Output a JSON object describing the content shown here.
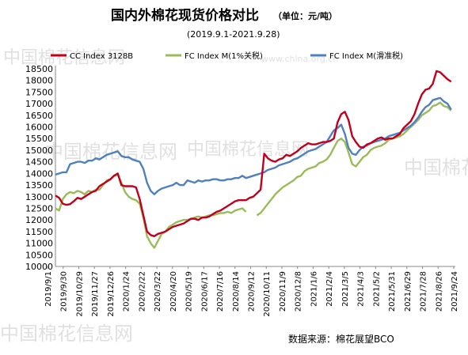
{
  "title": "国内外棉花现货价格对比",
  "unit_label": "（单位：元/吨）",
  "subtitle": "(2019.9.1-2021.9.28)",
  "source": "数据来源：棉花展望BCO",
  "watermark": "中国棉花信息网",
  "watermark_url": "www.china.org.cn",
  "chart_data": {
    "type": "line",
    "title": "国内外棉花现货价格对比",
    "subtitle": "(2019.9.1-2021.9.28)",
    "unit": "元/吨",
    "xlabel": "",
    "ylabel": "",
    "ylim": [
      10000,
      18500
    ],
    "yticks": [
      10000,
      10500,
      11000,
      11500,
      12000,
      12500,
      13000,
      13500,
      14000,
      14500,
      15000,
      15500,
      16000,
      16500,
      17000,
      17500,
      18000,
      18500
    ],
    "x_start": "2019-09-01",
    "x_end": "2021-09-28",
    "xtick_labels": [
      "2019/9/1",
      "2019/9/30",
      "2019/10/29",
      "2019/11/27",
      "2019/12/26",
      "2020/1/24",
      "2020/2/22",
      "2020/3/22",
      "2020/4/20",
      "2020/5/19",
      "2020/6/17",
      "2020/7/16",
      "2020/8/14",
      "2020/9/12",
      "2020/10/11",
      "2020/11/9",
      "2020/12/8",
      "2021/1/6",
      "2021/2/4",
      "2021/3/5",
      "2021/4/3",
      "2021/5/2",
      "2021/5/31",
      "2021/6/29",
      "2021/7/28",
      "2021/8/26",
      "2021/9/24"
    ],
    "grid": false,
    "legend_position": "top",
    "series": [
      {
        "name": "CC Index 3128B",
        "color": "#c0001d",
        "x": [
          "2019-09-01",
          "2019-09-08",
          "2019-09-15",
          "2019-09-22",
          "2019-09-29",
          "2019-10-06",
          "2019-10-13",
          "2019-10-20",
          "2019-10-27",
          "2019-11-03",
          "2019-11-10",
          "2019-11-17",
          "2019-11-24",
          "2019-12-01",
          "2019-12-08",
          "2019-12-15",
          "2019-12-22",
          "2019-12-29",
          "2020-01-05",
          "2020-01-12",
          "2020-01-19",
          "2020-01-26",
          "2020-02-02",
          "2020-02-09",
          "2020-02-16",
          "2020-02-23",
          "2020-03-01",
          "2020-03-08",
          "2020-03-15",
          "2020-03-22",
          "2020-03-29",
          "2020-04-05",
          "2020-04-12",
          "2020-04-19",
          "2020-04-26",
          "2020-05-03",
          "2020-05-10",
          "2020-05-17",
          "2020-05-24",
          "2020-05-31",
          "2020-06-07",
          "2020-06-14",
          "2020-06-21",
          "2020-06-28",
          "2020-07-05",
          "2020-07-12",
          "2020-07-19",
          "2020-07-26",
          "2020-08-02",
          "2020-08-09",
          "2020-08-16",
          "2020-08-23",
          "2020-08-30",
          "2020-09-06",
          "2020-09-13",
          "2020-09-20",
          "2020-09-27",
          "2020-10-04",
          "2020-10-11",
          "2020-10-18",
          "2020-10-25",
          "2020-11-01",
          "2020-11-08",
          "2020-11-15",
          "2020-11-22",
          "2020-11-29",
          "2020-12-06",
          "2020-12-13",
          "2020-12-20",
          "2020-12-27",
          "2021-01-03",
          "2021-01-10",
          "2021-01-17",
          "2021-01-24",
          "2021-01-31",
          "2021-02-07",
          "2021-02-14",
          "2021-02-21",
          "2021-02-28",
          "2021-03-07",
          "2021-03-14",
          "2021-03-21",
          "2021-03-28",
          "2021-04-04",
          "2021-04-11",
          "2021-04-18",
          "2021-04-25",
          "2021-05-02",
          "2021-05-09",
          "2021-05-16",
          "2021-05-23",
          "2021-05-30",
          "2021-06-06",
          "2021-06-13",
          "2021-06-20",
          "2021-06-27",
          "2021-07-04",
          "2021-07-11",
          "2021-07-18",
          "2021-07-25",
          "2021-08-01",
          "2021-08-08",
          "2021-08-15",
          "2021-08-22",
          "2021-08-29",
          "2021-09-05",
          "2021-09-12",
          "2021-09-19",
          "2021-09-26"
        ],
        "values": [
          13050,
          12950,
          12700,
          12650,
          12680,
          12800,
          12950,
          12900,
          13000,
          13100,
          13200,
          13250,
          13450,
          13550,
          13650,
          13750,
          13900,
          14000,
          13500,
          13450,
          13450,
          13450,
          13400,
          12900,
          12200,
          11500,
          11350,
          11300,
          11400,
          11450,
          11500,
          11600,
          11700,
          11750,
          11800,
          11850,
          11950,
          12050,
          12050,
          12000,
          12100,
          12100,
          12150,
          12250,
          12350,
          12400,
          12500,
          12600,
          12700,
          12800,
          12850,
          12850,
          12850,
          12950,
          13000,
          13150,
          13300,
          14850,
          14650,
          14550,
          14500,
          14600,
          14650,
          14800,
          14750,
          14850,
          14950,
          15100,
          15200,
          15300,
          15250,
          15250,
          15300,
          15350,
          15350,
          15400,
          15500,
          16200,
          16550,
          16650,
          16300,
          15600,
          15350,
          15150,
          15100,
          15250,
          15300,
          15400,
          15500,
          15550,
          15450,
          15500,
          15500,
          15600,
          15700,
          15950,
          16100,
          16250,
          16550,
          17000,
          17400,
          17600,
          17650,
          17850,
          18400,
          18350,
          18200,
          18050,
          17950
        ]
      },
      {
        "name": "FC Index M(1%关税)",
        "color": "#9bbb59",
        "x": [
          "2019-09-01",
          "2019-09-08",
          "2019-09-15",
          "2019-09-22",
          "2019-09-29",
          "2019-10-06",
          "2019-10-13",
          "2019-10-20",
          "2019-10-27",
          "2019-11-03",
          "2019-11-10",
          "2019-11-17",
          "2019-11-24",
          "2019-12-01",
          "2019-12-08",
          "2019-12-15",
          "2019-12-22",
          "2019-12-29",
          "2020-01-05",
          "2020-01-12",
          "2020-01-19",
          "2020-01-26",
          "2020-02-02",
          "2020-02-09",
          "2020-02-16",
          "2020-02-23",
          "2020-03-01",
          "2020-03-08",
          "2020-03-15",
          "2020-03-22",
          "2020-03-29",
          "2020-04-05",
          "2020-04-12",
          "2020-04-19",
          "2020-04-26",
          "2020-05-03",
          "2020-05-10",
          "2020-05-17",
          "2020-05-24",
          "2020-05-31",
          "2020-06-07",
          "2020-06-14",
          "2020-06-21",
          "2020-06-28",
          "2020-07-05",
          "2020-07-12",
          "2020-07-19",
          "2020-07-26",
          "2020-08-02",
          "2020-08-09",
          "2020-08-16",
          "2020-08-23",
          "2020-08-30",
          "2020-09-06",
          "2020-09-13",
          "2020-09-20",
          "2020-09-27",
          "2020-10-04",
          "2020-10-11",
          "2020-10-18",
          "2020-10-25",
          "2020-11-01",
          "2020-11-08",
          "2020-11-15",
          "2020-11-22",
          "2020-11-29",
          "2020-12-06",
          "2020-12-13",
          "2020-12-20",
          "2020-12-27",
          "2021-01-03",
          "2021-01-10",
          "2021-01-17",
          "2021-01-24",
          "2021-01-31",
          "2021-02-07",
          "2021-02-14",
          "2021-02-21",
          "2021-02-28",
          "2021-03-07",
          "2021-03-14",
          "2021-03-21",
          "2021-03-28",
          "2021-04-04",
          "2021-04-11",
          "2021-04-18",
          "2021-04-25",
          "2021-05-02",
          "2021-05-09",
          "2021-05-16",
          "2021-05-23",
          "2021-05-30",
          "2021-06-06",
          "2021-06-13",
          "2021-06-20",
          "2021-06-27",
          "2021-07-04",
          "2021-07-11",
          "2021-07-18",
          "2021-07-25",
          "2021-08-01",
          "2021-08-08",
          "2021-08-15",
          "2021-08-22",
          "2021-08-29",
          "2021-09-05",
          "2021-09-12",
          "2021-09-19",
          "2021-09-26"
        ],
        "values": [
          12500,
          12400,
          12900,
          13100,
          13200,
          13150,
          13250,
          13200,
          13100,
          13250,
          13200,
          13300,
          13300,
          13500,
          13700,
          13750,
          13900,
          13950,
          13600,
          13200,
          13000,
          12900,
          12850,
          12700,
          12100,
          11300,
          11000,
          10800,
          11100,
          11400,
          11500,
          11700,
          11800,
          11900,
          11950,
          12000,
          12000,
          12050,
          12100,
          12150,
          12100,
          12150,
          12200,
          12200,
          12250,
          12300,
          12300,
          12350,
          12300,
          12400,
          12450,
          12500,
          12350,
          null,
          null,
          12200,
          12300,
          12500,
          12700,
          12900,
          13100,
          13250,
          13400,
          13500,
          13600,
          13700,
          13850,
          13900,
          14100,
          14200,
          14250,
          14300,
          14450,
          14500,
          14600,
          14800,
          15100,
          15400,
          15500,
          15350,
          14900,
          14400,
          14300,
          14500,
          14700,
          14800,
          15000,
          15100,
          15150,
          15200,
          15300,
          15450,
          15500,
          15550,
          15600,
          15700,
          15850,
          16000,
          16150,
          16300,
          16500,
          16600,
          16700,
          16900,
          16950,
          17050,
          16900,
          16850,
          16700
        ]
      },
      {
        "name": "FC Index M(滑准税)",
        "color": "#4f81bd",
        "x": [
          "2019-09-01",
          "2019-09-08",
          "2019-09-15",
          "2019-09-22",
          "2019-09-29",
          "2019-10-06",
          "2019-10-13",
          "2019-10-20",
          "2019-10-27",
          "2019-11-03",
          "2019-11-10",
          "2019-11-17",
          "2019-11-24",
          "2019-12-01",
          "2019-12-08",
          "2019-12-15",
          "2019-12-22",
          "2019-12-29",
          "2020-01-05",
          "2020-01-12",
          "2020-01-19",
          "2020-01-26",
          "2020-02-02",
          "2020-02-09",
          "2020-02-16",
          "2020-02-23",
          "2020-03-01",
          "2020-03-08",
          "2020-03-15",
          "2020-03-22",
          "2020-03-29",
          "2020-04-05",
          "2020-04-12",
          "2020-04-19",
          "2020-04-26",
          "2020-05-03",
          "2020-05-10",
          "2020-05-17",
          "2020-05-24",
          "2020-05-31",
          "2020-06-07",
          "2020-06-14",
          "2020-06-21",
          "2020-06-28",
          "2020-07-05",
          "2020-07-12",
          "2020-07-19",
          "2020-07-26",
          "2020-08-02",
          "2020-08-09",
          "2020-08-16",
          "2020-08-23",
          "2020-08-30",
          "2020-09-06",
          "2020-09-13",
          "2020-09-20",
          "2020-09-27",
          "2020-10-04",
          "2020-10-11",
          "2020-10-18",
          "2020-10-25",
          "2020-11-01",
          "2020-11-08",
          "2020-11-15",
          "2020-11-22",
          "2020-11-29",
          "2020-12-06",
          "2020-12-13",
          "2020-12-20",
          "2020-12-27",
          "2021-01-03",
          "2021-01-10",
          "2021-01-17",
          "2021-01-24",
          "2021-01-31",
          "2021-02-07",
          "2021-02-14",
          "2021-02-21",
          "2021-02-28",
          "2021-03-07",
          "2021-03-14",
          "2021-03-21",
          "2021-03-28",
          "2021-04-04",
          "2021-04-11",
          "2021-04-18",
          "2021-04-25",
          "2021-05-02",
          "2021-05-09",
          "2021-05-16",
          "2021-05-23",
          "2021-05-30",
          "2021-06-06",
          "2021-06-13",
          "2021-06-20",
          "2021-06-27",
          "2021-07-04",
          "2021-07-11",
          "2021-07-18",
          "2021-07-25",
          "2021-08-01",
          "2021-08-08",
          "2021-08-15",
          "2021-08-22",
          "2021-08-29",
          "2021-09-05",
          "2021-09-12",
          "2021-09-19",
          "2021-09-26"
        ],
        "values": [
          13950,
          14000,
          14050,
          14050,
          14400,
          14450,
          14500,
          14500,
          14450,
          14550,
          14550,
          14650,
          14600,
          14700,
          14800,
          14850,
          14900,
          14950,
          14750,
          14700,
          14700,
          14600,
          14550,
          14500,
          14200,
          13600,
          13250,
          13100,
          13250,
          13350,
          13400,
          13450,
          13500,
          13600,
          13500,
          13500,
          13700,
          13650,
          13600,
          13700,
          13650,
          13700,
          13700,
          13750,
          13750,
          13700,
          13700,
          13750,
          13750,
          13800,
          13800,
          13900,
          13800,
          13850,
          13900,
          13950,
          14000,
          14050,
          14150,
          14200,
          14250,
          14350,
          14400,
          14450,
          14500,
          14600,
          14650,
          14750,
          14850,
          14950,
          15000,
          15050,
          15150,
          15250,
          15350,
          15600,
          15850,
          15950,
          16100,
          15700,
          15100,
          14850,
          14800,
          15000,
          15150,
          15200,
          15300,
          15350,
          15400,
          15450,
          15500,
          15600,
          15650,
          15700,
          15750,
          15850,
          15950,
          16050,
          16200,
          16400,
          16650,
          16850,
          16950,
          17150,
          17200,
          17250,
          17100,
          17000,
          16750
        ]
      }
    ]
  }
}
